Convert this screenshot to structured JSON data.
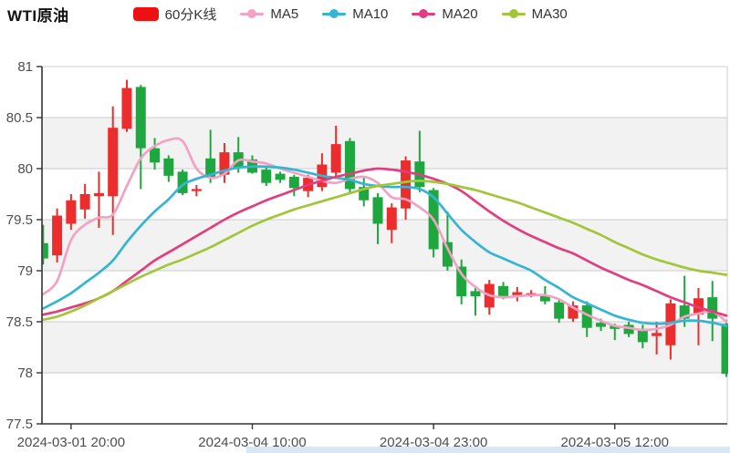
{
  "header": {
    "title": "WTI原油",
    "legend": [
      {
        "label": "60分K线",
        "color": "#ed1111",
        "marker": "rect"
      },
      {
        "label": "MA5",
        "color": "#f2a2c4",
        "marker": "line-dot"
      },
      {
        "label": "MA10",
        "color": "#36b4d3",
        "marker": "line-dot"
      },
      {
        "label": "MA20",
        "color": "#e13e80",
        "marker": "line-dot"
      },
      {
        "label": "MA30",
        "color": "#a3c53a",
        "marker": "line-dot"
      }
    ]
  },
  "footer": {
    "scroll_strip_color": "#d9e6f3"
  },
  "chart_data": {
    "type": "candlestick",
    "title": "WTI原油 60分K线",
    "legend_position": "top",
    "grid": "horizontal-bands",
    "up_color": "#ec2d2d",
    "down_color": "#1fa73f",
    "band_color": "#f2f2f2",
    "gridline_color": "#cccccc",
    "axis_color": "#333333",
    "axis_label_color": "#4d4d4d",
    "y_axis": {
      "min": 77.5,
      "max": 81,
      "tick_step": 0.5,
      "tick_labels": [
        "81",
        "80.5",
        "80",
        "79.5",
        "79",
        "78.5",
        "78",
        "77.5"
      ]
    },
    "x_axis": {
      "tick_labels": [
        "2024-03-01 20:00",
        "2024-03-04 10:00",
        "2024-03-04 23:00",
        "2024-03-05 12:00"
      ],
      "tick_indices": [
        2,
        15,
        28,
        41
      ]
    },
    "candles": [
      {
        "t": "2024-03-01 18:00",
        "o": 79.27,
        "h": 79.45,
        "l": 79.06,
        "c": 79.12
      },
      {
        "t": "2024-03-01 19:00",
        "o": 79.15,
        "h": 79.61,
        "l": 79.08,
        "c": 79.54
      },
      {
        "t": "2024-03-01 20:00",
        "o": 79.46,
        "h": 79.75,
        "l": 79.4,
        "c": 79.69
      },
      {
        "t": "2024-03-01 21:00",
        "o": 79.6,
        "h": 79.85,
        "l": 79.51,
        "c": 79.75
      },
      {
        "t": "2024-03-01 22:00",
        "o": 79.73,
        "h": 79.97,
        "l": 79.42,
        "c": 79.76
      },
      {
        "t": "2024-03-01 23:00",
        "o": 79.73,
        "h": 80.61,
        "l": 79.35,
        "c": 80.4
      },
      {
        "t": "2024-03-02 00:00",
        "o": 80.39,
        "h": 80.87,
        "l": 80.36,
        "c": 80.79
      },
      {
        "t": "2024-03-02 01:00",
        "o": 80.8,
        "h": 80.82,
        "l": 79.8,
        "c": 80.2
      },
      {
        "t": "2024-03-02 02:00",
        "o": 80.2,
        "h": 80.3,
        "l": 79.99,
        "c": 80.06
      },
      {
        "t": "2024-03-02 03:00",
        "o": 80.1,
        "h": 80.13,
        "l": 79.87,
        "c": 79.93
      },
      {
        "t": "2024-03-02 04:00",
        "o": 79.97,
        "h": 79.99,
        "l": 79.74,
        "c": 79.76
      },
      {
        "t": "2024-03-02 05:00",
        "o": 79.78,
        "h": 79.84,
        "l": 79.73,
        "c": 79.8
      },
      {
        "t": "2024-03-04 07:00",
        "o": 80.1,
        "h": 80.38,
        "l": 79.86,
        "c": 79.92
      },
      {
        "t": "2024-03-04 08:00",
        "o": 79.94,
        "h": 80.25,
        "l": 79.86,
        "c": 80.16
      },
      {
        "t": "2024-03-04 09:00",
        "o": 80.16,
        "h": 80.31,
        "l": 79.96,
        "c": 80.01
      },
      {
        "t": "2024-03-04 10:00",
        "o": 80.09,
        "h": 80.13,
        "l": 79.95,
        "c": 79.96
      },
      {
        "t": "2024-03-04 11:00",
        "o": 79.99,
        "h": 80.01,
        "l": 79.83,
        "c": 79.86
      },
      {
        "t": "2024-03-04 12:00",
        "o": 79.95,
        "h": 79.97,
        "l": 79.86,
        "c": 79.89
      },
      {
        "t": "2024-03-04 13:00",
        "o": 79.92,
        "h": 79.94,
        "l": 79.73,
        "c": 79.81
      },
      {
        "t": "2024-03-04 14:00",
        "o": 79.78,
        "h": 79.94,
        "l": 79.72,
        "c": 79.91
      },
      {
        "t": "2024-03-04 15:00",
        "o": 79.82,
        "h": 80.15,
        "l": 79.78,
        "c": 80.04
      },
      {
        "t": "2024-03-04 16:00",
        "o": 79.96,
        "h": 80.42,
        "l": 79.9,
        "c": 80.24
      },
      {
        "t": "2024-03-04 17:00",
        "o": 80.27,
        "h": 80.3,
        "l": 79.75,
        "c": 79.8
      },
      {
        "t": "2024-03-04 18:00",
        "o": 79.82,
        "h": 79.91,
        "l": 79.63,
        "c": 79.69
      },
      {
        "t": "2024-03-04 19:00",
        "o": 79.72,
        "h": 79.76,
        "l": 79.26,
        "c": 79.46
      },
      {
        "t": "2024-03-04 20:00",
        "o": 79.4,
        "h": 79.66,
        "l": 79.27,
        "c": 79.62
      },
      {
        "t": "2024-03-04 21:00",
        "o": 79.61,
        "h": 80.12,
        "l": 79.5,
        "c": 80.08
      },
      {
        "t": "2024-03-04 22:00",
        "o": 80.07,
        "h": 80.37,
        "l": 79.77,
        "c": 79.82
      },
      {
        "t": "2024-03-04 23:00",
        "o": 79.79,
        "h": 79.81,
        "l": 79.13,
        "c": 79.21
      },
      {
        "t": "2024-03-05 00:00",
        "o": 79.28,
        "h": 79.58,
        "l": 79.0,
        "c": 79.04
      },
      {
        "t": "2024-03-05 01:00",
        "o": 79.04,
        "h": 79.11,
        "l": 78.67,
        "c": 78.75
      },
      {
        "t": "2024-03-05 02:00",
        "o": 78.8,
        "h": 78.85,
        "l": 78.56,
        "c": 78.75
      },
      {
        "t": "2024-03-05 03:00",
        "o": 78.64,
        "h": 78.91,
        "l": 78.57,
        "c": 78.87
      },
      {
        "t": "2024-03-05 04:00",
        "o": 78.85,
        "h": 78.89,
        "l": 78.72,
        "c": 78.75
      },
      {
        "t": "2024-03-05 05:00",
        "o": 78.76,
        "h": 78.84,
        "l": 78.7,
        "c": 78.79
      },
      {
        "t": "2024-03-05 06:00",
        "o": 78.76,
        "h": 78.81,
        "l": 78.74,
        "c": 78.78
      },
      {
        "t": "2024-03-05 07:00",
        "o": 78.75,
        "h": 78.85,
        "l": 78.67,
        "c": 78.7
      },
      {
        "t": "2024-03-05 08:00",
        "o": 78.69,
        "h": 78.72,
        "l": 78.49,
        "c": 78.53
      },
      {
        "t": "2024-03-05 09:00",
        "o": 78.53,
        "h": 78.7,
        "l": 78.5,
        "c": 78.66
      },
      {
        "t": "2024-03-05 10:00",
        "o": 78.66,
        "h": 78.7,
        "l": 78.35,
        "c": 78.44
      },
      {
        "t": "2024-03-05 11:00",
        "o": 78.49,
        "h": 78.53,
        "l": 78.41,
        "c": 78.45
      },
      {
        "t": "2024-03-05 12:00",
        "o": 78.46,
        "h": 78.48,
        "l": 78.32,
        "c": 78.43
      },
      {
        "t": "2024-03-05 13:00",
        "o": 78.47,
        "h": 78.5,
        "l": 78.35,
        "c": 78.38
      },
      {
        "t": "2024-03-05 14:00",
        "o": 78.43,
        "h": 78.47,
        "l": 78.24,
        "c": 78.3
      },
      {
        "t": "2024-03-05 15:00",
        "o": 78.36,
        "h": 78.5,
        "l": 78.18,
        "c": 78.39
      },
      {
        "t": "2024-03-05 16:00",
        "o": 78.27,
        "h": 78.72,
        "l": 78.13,
        "c": 78.68
      },
      {
        "t": "2024-03-05 17:00",
        "o": 78.66,
        "h": 78.95,
        "l": 78.45,
        "c": 78.53
      },
      {
        "t": "2024-03-05 18:00",
        "o": 78.57,
        "h": 78.83,
        "l": 78.27,
        "c": 78.73
      },
      {
        "t": "2024-03-05 19:00",
        "o": 78.74,
        "h": 78.9,
        "l": 78.31,
        "c": 78.53
      },
      {
        "t": "2024-03-05 20:00",
        "o": 78.48,
        "h": 78.52,
        "l": 77.96,
        "c": 77.99
      }
    ],
    "ma_series": [
      {
        "name": "MA5",
        "color": "#f2a2c4",
        "values": [
          78.77,
          78.9,
          79.3,
          79.45,
          79.52,
          79.55,
          79.83,
          80.1,
          80.22,
          80.28,
          80.27,
          80.0,
          79.91,
          79.95,
          80.08,
          80.07,
          80.05,
          80.0,
          79.96,
          79.92,
          79.88,
          79.86,
          79.9,
          79.92,
          79.86,
          79.72,
          79.7,
          79.62,
          79.5,
          79.22,
          78.97,
          78.84,
          78.76,
          78.74,
          78.75,
          78.76,
          78.76,
          78.72,
          78.64,
          78.57,
          78.51,
          78.46,
          78.44,
          78.42,
          78.43,
          78.47,
          78.55,
          78.58,
          78.6,
          78.5
        ]
      },
      {
        "name": "MA10",
        "color": "#36b4d3",
        "values": [
          78.63,
          78.7,
          78.78,
          78.88,
          78.98,
          79.1,
          79.28,
          79.44,
          79.58,
          79.7,
          79.84,
          79.9,
          79.94,
          79.98,
          80.01,
          80.02,
          80.02,
          80.01,
          79.99,
          79.96,
          79.93,
          79.91,
          79.89,
          79.85,
          79.83,
          79.82,
          79.82,
          79.8,
          79.72,
          79.56,
          79.4,
          79.28,
          79.18,
          79.12,
          79.06,
          79.0,
          78.91,
          78.83,
          78.74,
          78.68,
          78.62,
          78.56,
          78.52,
          78.49,
          78.48,
          78.49,
          78.51,
          78.51,
          78.49,
          78.46
        ]
      },
      {
        "name": "MA20",
        "color": "#e13e80",
        "values": [
          78.57,
          78.6,
          78.64,
          78.68,
          78.73,
          78.8,
          78.9,
          79.0,
          79.1,
          79.18,
          79.26,
          79.34,
          79.42,
          79.5,
          79.57,
          79.63,
          79.69,
          79.74,
          79.79,
          79.84,
          79.88,
          79.92,
          79.95,
          79.98,
          80.0,
          79.99,
          79.97,
          79.94,
          79.9,
          79.85,
          79.78,
          79.68,
          79.58,
          79.49,
          79.41,
          79.34,
          79.28,
          79.22,
          79.17,
          79.1,
          79.03,
          78.97,
          78.91,
          78.86,
          78.8,
          78.74,
          78.69,
          78.64,
          78.6,
          78.56
        ]
      },
      {
        "name": "MA30",
        "color": "#a3c53a",
        "values": [
          78.52,
          78.55,
          78.6,
          78.66,
          78.73,
          78.8,
          78.87,
          78.94,
          79.0,
          79.06,
          79.11,
          79.17,
          79.23,
          79.3,
          79.37,
          79.44,
          79.5,
          79.55,
          79.6,
          79.64,
          79.68,
          79.72,
          79.76,
          79.8,
          79.83,
          79.85,
          79.87,
          79.88,
          79.87,
          79.85,
          79.82,
          79.79,
          79.75,
          79.71,
          79.67,
          79.62,
          79.57,
          79.52,
          79.47,
          79.41,
          79.35,
          79.28,
          79.22,
          79.16,
          79.11,
          79.07,
          79.03,
          79.0,
          78.98,
          78.96
        ]
      }
    ]
  }
}
